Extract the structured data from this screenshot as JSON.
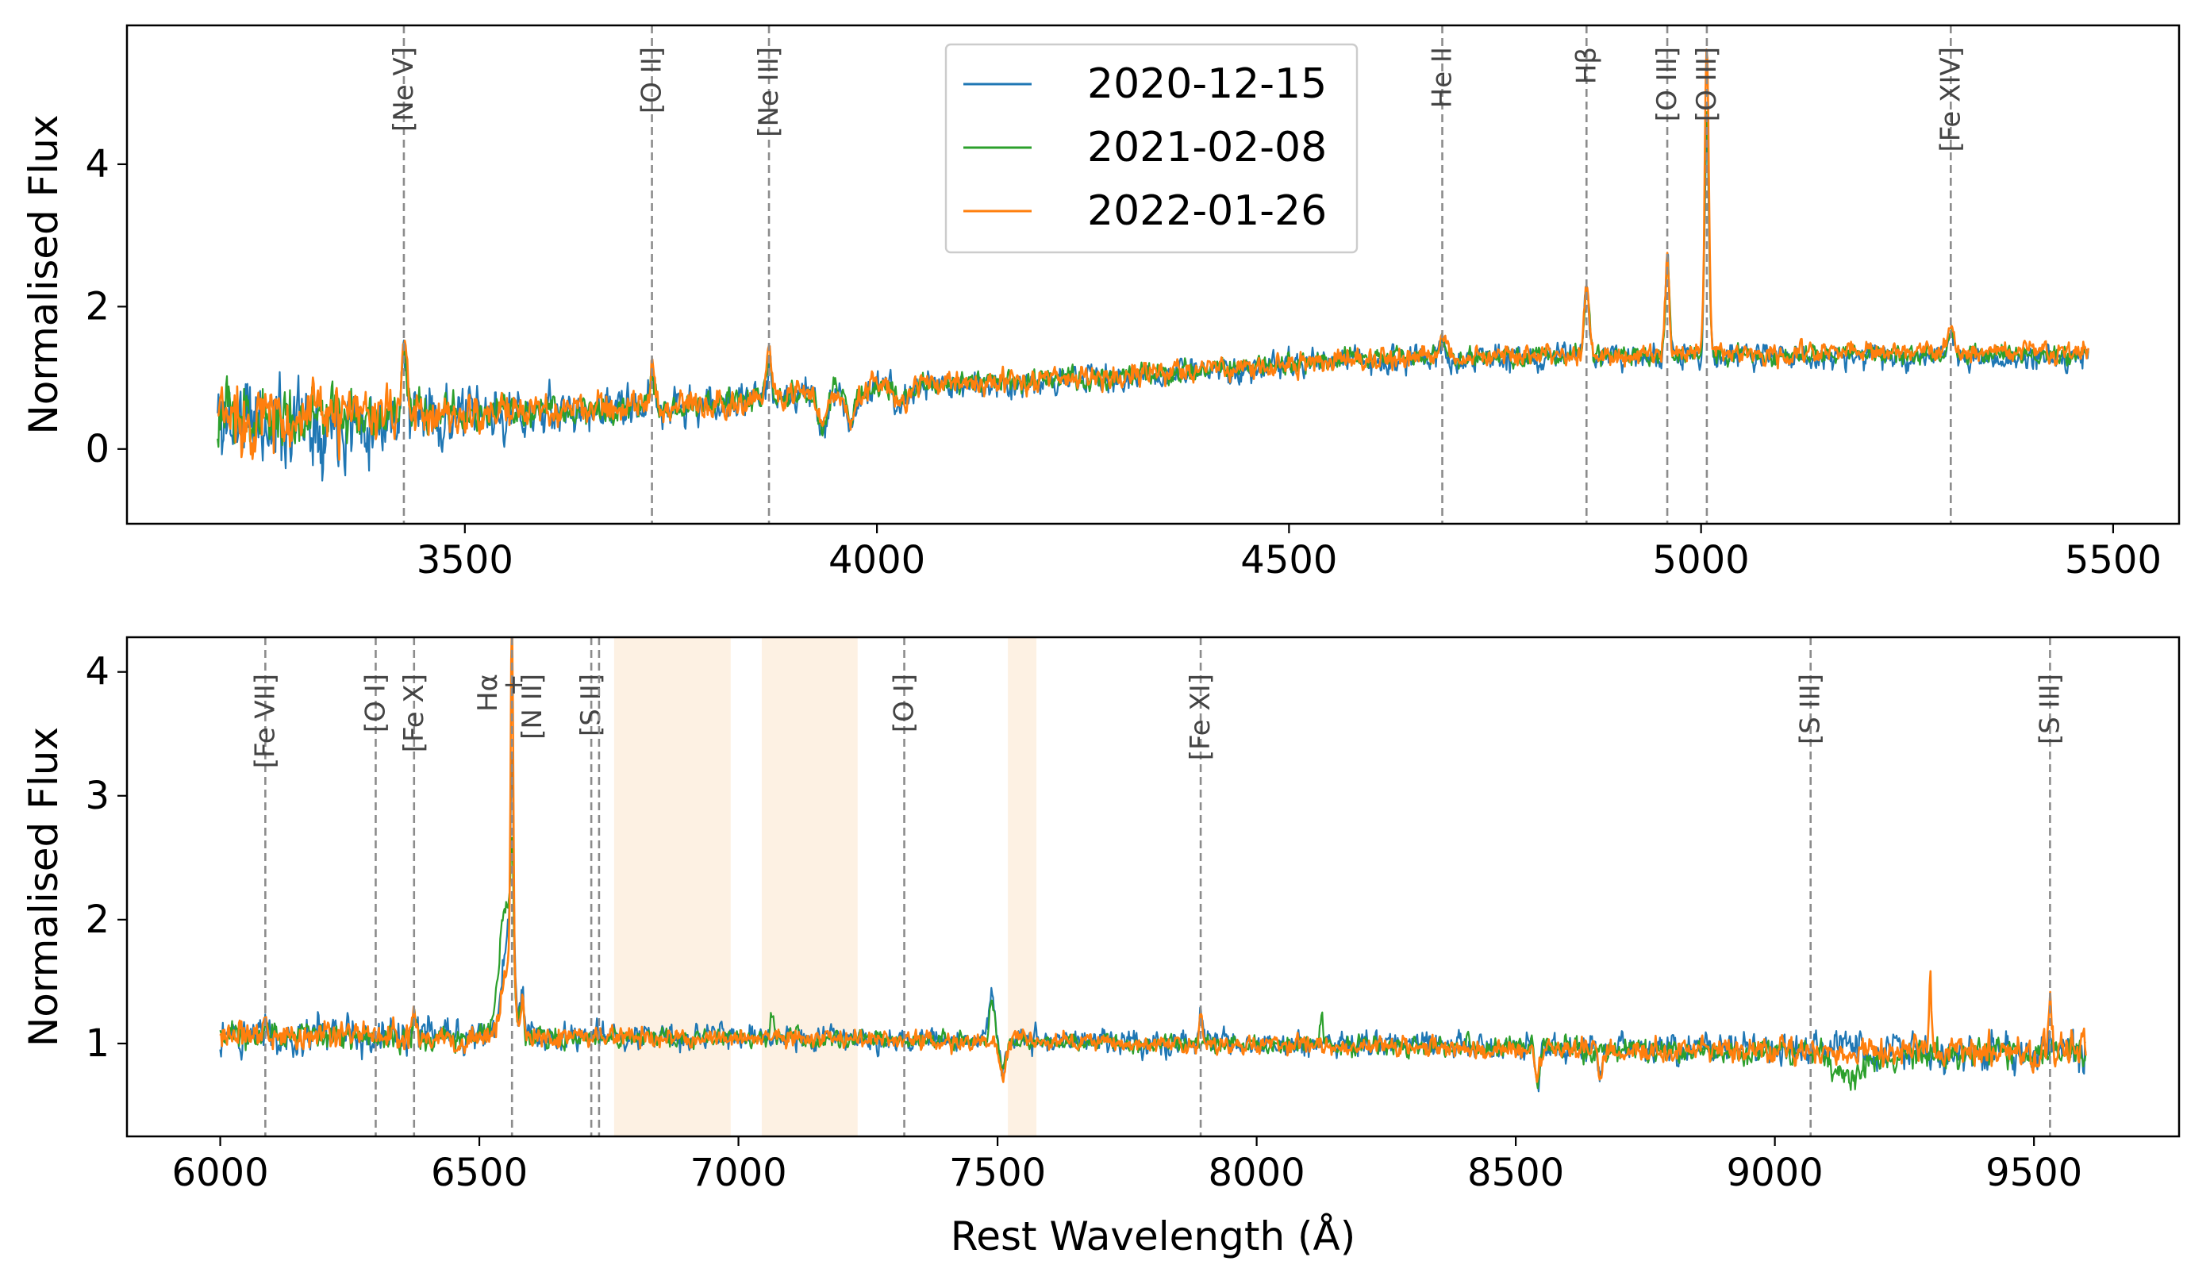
{
  "chart_data": [
    {
      "type": "line",
      "panel": "top",
      "xlabel": "",
      "ylabel": "Normalised Flux",
      "xlim": [
        3090,
        5580
      ],
      "ylim": [
        -1.05,
        5.95
      ],
      "xticks": [
        3500,
        4000,
        4500,
        5000,
        5500
      ],
      "yticks": [
        0,
        2,
        4
      ],
      "x_range": [
        3200,
        5470
      ],
      "legend": {
        "placement": "top-center",
        "entries": [
          "2020-12-15",
          "2021-02-08",
          "2022-01-26"
        ]
      },
      "series": [
        {
          "name": "2020-12-15",
          "color": "#1f77b4",
          "continuum": [
            [
              3200,
              0.4
            ],
            [
              3500,
              0.45
            ],
            [
              3800,
              0.62
            ],
            [
              4000,
              0.85
            ],
            [
              4300,
              1.0
            ],
            [
              4600,
              1.25
            ],
            [
              5000,
              1.3
            ],
            [
              5470,
              1.3
            ]
          ],
          "noise": [
            [
              3200,
              0.55
            ],
            [
              3400,
              0.35
            ],
            [
              3600,
              0.22
            ],
            [
              4000,
              0.15
            ],
            [
              5470,
              0.12
            ]
          ],
          "lines": [
            {
              "x": 3426,
              "h": 1.0,
              "w": 3
            },
            {
              "x": 3727,
              "h": 0.45,
              "w": 3
            },
            {
              "x": 3869,
              "h": 0.6,
              "w": 3
            },
            {
              "x": 4686,
              "h": 0.25,
              "w": 4
            },
            {
              "x": 4861,
              "h": 1.0,
              "w": 3
            },
            {
              "x": 4959,
              "h": 1.3,
              "w": 2.5
            },
            {
              "x": 5007,
              "h": 3.3,
              "w": 2.5
            },
            {
              "x": 5303,
              "h": 0.3,
              "w": 4
            }
          ],
          "absorptions": [
            {
              "x": 3934,
              "d": 0.45,
              "w": 6
            },
            {
              "x": 3969,
              "d": 0.4,
              "w": 6
            },
            {
              "x": 4030,
              "d": 0.25,
              "w": 8
            }
          ],
          "seed": 11
        },
        {
          "name": "2021-02-08",
          "color": "#2ca02c",
          "continuum": [
            [
              3200,
              0.45
            ],
            [
              3500,
              0.48
            ],
            [
              3800,
              0.65
            ],
            [
              4000,
              0.88
            ],
            [
              4300,
              1.02
            ],
            [
              4600,
              1.27
            ],
            [
              5000,
              1.32
            ],
            [
              5470,
              1.33
            ]
          ],
          "noise": [
            [
              3200,
              0.35
            ],
            [
              3400,
              0.22
            ],
            [
              3600,
              0.15
            ],
            [
              4000,
              0.11
            ],
            [
              5470,
              0.09
            ]
          ],
          "lines": [
            {
              "x": 3426,
              "h": 0.9,
              "w": 3
            },
            {
              "x": 3727,
              "h": 0.45,
              "w": 3
            },
            {
              "x": 3869,
              "h": 0.6,
              "w": 3
            },
            {
              "x": 4686,
              "h": 0.25,
              "w": 4
            },
            {
              "x": 4861,
              "h": 0.95,
              "w": 3
            },
            {
              "x": 4959,
              "h": 1.25,
              "w": 2.5
            },
            {
              "x": 5007,
              "h": 3.5,
              "w": 2.5
            },
            {
              "x": 5303,
              "h": 0.3,
              "w": 4
            }
          ],
          "absorptions": [
            {
              "x": 3934,
              "d": 0.45,
              "w": 6
            },
            {
              "x": 3969,
              "d": 0.4,
              "w": 6
            },
            {
              "x": 4030,
              "d": 0.25,
              "w": 8
            }
          ],
          "seed": 23
        },
        {
          "name": "2022-01-26",
          "color": "#ff7f0e",
          "continuum": [
            [
              3200,
              0.45
            ],
            [
              3500,
              0.48
            ],
            [
              3800,
              0.65
            ],
            [
              4000,
              0.88
            ],
            [
              4300,
              1.02
            ],
            [
              4600,
              1.28
            ],
            [
              5000,
              1.33
            ],
            [
              5470,
              1.38
            ]
          ],
          "noise": [
            [
              3200,
              0.4
            ],
            [
              3400,
              0.25
            ],
            [
              3600,
              0.17
            ],
            [
              4000,
              0.12
            ],
            [
              5470,
              0.1
            ]
          ],
          "lines": [
            {
              "x": 3426,
              "h": 1.2,
              "w": 3
            },
            {
              "x": 3727,
              "h": 0.5,
              "w": 3
            },
            {
              "x": 3869,
              "h": 0.7,
              "w": 3
            },
            {
              "x": 4686,
              "h": 0.3,
              "w": 4
            },
            {
              "x": 4861,
              "h": 1.0,
              "w": 3
            },
            {
              "x": 4959,
              "h": 1.35,
              "w": 2.5
            },
            {
              "x": 5007,
              "h": 4.3,
              "w": 2.5
            },
            {
              "x": 5303,
              "h": 0.35,
              "w": 4
            }
          ],
          "absorptions": [
            {
              "x": 3934,
              "d": 0.45,
              "w": 6
            },
            {
              "x": 3969,
              "d": 0.4,
              "w": 6
            },
            {
              "x": 4030,
              "d": 0.25,
              "w": 8
            }
          ],
          "seed": 37
        }
      ],
      "line_markers": [
        {
          "x": 3426,
          "label": "[Ne V]"
        },
        {
          "x": 3727,
          "label": "[O II]"
        },
        {
          "x": 3869,
          "label": "[Ne III]"
        },
        {
          "x": 4686,
          "label": "He II"
        },
        {
          "x": 4861,
          "label": "Hβ"
        },
        {
          "x": 4959,
          "label": "[O III]"
        },
        {
          "x": 5007,
          "label": "[O III]"
        },
        {
          "x": 5303,
          "label": "[Fe XIV]"
        }
      ]
    },
    {
      "type": "line",
      "panel": "bottom",
      "xlabel": "Rest Wavelength (Å)",
      "ylabel": "Normalised Flux",
      "xlim": [
        5820,
        9780
      ],
      "ylim": [
        0.25,
        4.28
      ],
      "xticks": [
        6000,
        6500,
        7000,
        7500,
        8000,
        8500,
        9000,
        9500
      ],
      "yticks": [
        1,
        2,
        3,
        4
      ],
      "x_range": [
        6000,
        9600
      ],
      "shaded_bands": [
        [
          6760,
          6985
        ],
        [
          7045,
          7230
        ],
        [
          7520,
          7575
        ]
      ],
      "band_color": "#fdf1e3",
      "series": [
        {
          "name": "2020-12-15",
          "color": "#1f77b4",
          "continuum": [
            [
              6000,
              1.08
            ],
            [
              6500,
              1.06
            ],
            [
              7000,
              1.05
            ],
            [
              7500,
              1.03
            ],
            [
              8000,
              1.0
            ],
            [
              8500,
              0.97
            ],
            [
              9000,
              0.95
            ],
            [
              9600,
              0.92
            ]
          ],
          "noise": [
            [
              6000,
              0.12
            ],
            [
              7000,
              0.07
            ],
            [
              8000,
              0.07
            ],
            [
              9000,
              0.09
            ],
            [
              9600,
              0.12
            ]
          ],
          "lines": [
            {
              "x": 6087,
              "h": 0.15,
              "w": 3
            },
            {
              "x": 6374,
              "h": 0.2,
              "w": 3
            },
            {
              "x": 6555,
              "h": 0.75,
              "w": 12
            },
            {
              "x": 6563,
              "h": 1.6,
              "w": 3
            },
            {
              "x": 6583,
              "h": 0.35,
              "w": 3
            },
            {
              "x": 7490,
              "h": 0.35,
              "w": 6
            },
            {
              "x": 7892,
              "h": 0.2,
              "w": 3
            },
            {
              "x": 9531,
              "h": 0.2,
              "w": 3
            }
          ],
          "absorptions": [
            {
              "x": 7510,
              "d": 0.25,
              "w": 6
            },
            {
              "x": 8542,
              "d": 0.3,
              "w": 4
            },
            {
              "x": 8662,
              "d": 0.25,
              "w": 4
            }
          ],
          "seed": 51
        },
        {
          "name": "2021-02-08",
          "color": "#2ca02c",
          "continuum": [
            [
              6000,
              1.06
            ],
            [
              6500,
              1.05
            ],
            [
              7000,
              1.04
            ],
            [
              7500,
              1.02
            ],
            [
              8000,
              0.99
            ],
            [
              8500,
              0.96
            ],
            [
              9000,
              0.93
            ],
            [
              9600,
              0.9
            ]
          ],
          "noise": [
            [
              6000,
              0.08
            ],
            [
              7000,
              0.05
            ],
            [
              8000,
              0.05
            ],
            [
              9000,
              0.07
            ],
            [
              9600,
              0.09
            ]
          ],
          "lines": [
            {
              "x": 6087,
              "h": 0.15,
              "w": 3
            },
            {
              "x": 6374,
              "h": 0.2,
              "w": 3
            },
            {
              "x": 6550,
              "h": 1.05,
              "w": 12
            },
            {
              "x": 6563,
              "h": 1.0,
              "w": 3
            },
            {
              "x": 6583,
              "h": 0.35,
              "w": 3
            },
            {
              "x": 7065,
              "h": 0.2,
              "w": 3
            },
            {
              "x": 7490,
              "h": 0.3,
              "w": 6
            },
            {
              "x": 8125,
              "h": 0.2,
              "w": 3
            }
          ],
          "absorptions": [
            {
              "x": 7510,
              "d": 0.25,
              "w": 6
            },
            {
              "x": 8542,
              "d": 0.3,
              "w": 4
            },
            {
              "x": 9150,
              "d": 0.2,
              "w": 30
            }
          ],
          "seed": 67
        },
        {
          "name": "2022-01-26",
          "color": "#ff7f0e",
          "continuum": [
            [
              6000,
              1.06
            ],
            [
              6500,
              1.05
            ],
            [
              7000,
              1.04
            ],
            [
              7500,
              1.02
            ],
            [
              8000,
              0.99
            ],
            [
              8500,
              0.96
            ],
            [
              9000,
              0.94
            ],
            [
              9600,
              0.93
            ]
          ],
          "noise": [
            [
              6000,
              0.09
            ],
            [
              7000,
              0.05
            ],
            [
              8000,
              0.05
            ],
            [
              9000,
              0.07
            ],
            [
              9600,
              0.1
            ]
          ],
          "lines": [
            {
              "x": 6087,
              "h": 0.15,
              "w": 3
            },
            {
              "x": 6374,
              "h": 0.2,
              "w": 3
            },
            {
              "x": 6555,
              "h": 0.6,
              "w": 12
            },
            {
              "x": 6563,
              "h": 2.95,
              "w": 2.5
            },
            {
              "x": 6583,
              "h": 0.35,
              "w": 3
            },
            {
              "x": 7892,
              "h": 0.25,
              "w": 3
            },
            {
              "x": 9300,
              "h": 0.55,
              "w": 2
            },
            {
              "x": 9531,
              "h": 0.4,
              "w": 3
            }
          ],
          "absorptions": [
            {
              "x": 7510,
              "d": 0.3,
              "w": 6
            },
            {
              "x": 8542,
              "d": 0.3,
              "w": 4
            },
            {
              "x": 8662,
              "d": 0.25,
              "w": 4
            }
          ],
          "seed": 83
        }
      ],
      "line_markers": [
        {
          "x": 6087,
          "label": "[Fe VII]"
        },
        {
          "x": 6300,
          "label": "[O I]"
        },
        {
          "x": 6374,
          "label": "[Fe X]"
        },
        {
          "x": 6563,
          "label": "Hα",
          "label2": "+",
          "label3": "[N II]"
        },
        {
          "x": 6716,
          "label": "[S II]"
        },
        {
          "x": 6731,
          "label": ""
        },
        {
          "x": 7320,
          "label": "[O I]"
        },
        {
          "x": 7892,
          "label": "[Fe XI]"
        },
        {
          "x": 9069,
          "label": "[S III]"
        },
        {
          "x": 9531,
          "label": "[S III]"
        }
      ]
    }
  ]
}
